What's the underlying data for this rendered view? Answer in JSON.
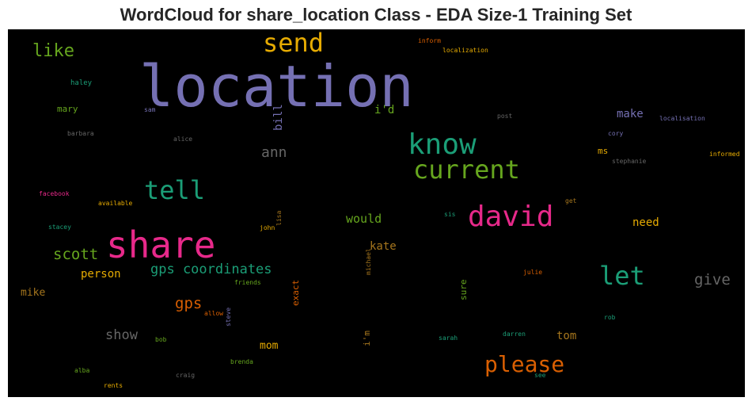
{
  "title": "WordCloud for share_location Class - EDA Size-1 Training Set",
  "chart_data": {
    "type": "wordcloud",
    "title": "WordCloud for share_location Class - EDA Size-1 Training Set",
    "background": "#000000",
    "words": [
      {
        "text": "location",
        "color": "#7570b3"
      },
      {
        "text": "share",
        "color": "#e7298a"
      },
      {
        "text": "send",
        "color": "#e6ab02"
      },
      {
        "text": "know",
        "color": "#1b9e77"
      },
      {
        "text": "current",
        "color": "#66a61e"
      },
      {
        "text": "david",
        "color": "#e7298a"
      },
      {
        "text": "tell",
        "color": "#1b9e77"
      },
      {
        "text": "let",
        "color": "#1b9e77"
      },
      {
        "text": "please",
        "color": "#d95f02"
      },
      {
        "text": "gps coordinates",
        "color": "#1b9e77"
      },
      {
        "text": "like",
        "color": "#66a61e"
      },
      {
        "text": "scott",
        "color": "#66a61e"
      },
      {
        "text": "give",
        "color": "#666666"
      },
      {
        "text": "gps",
        "color": "#d95f02"
      },
      {
        "text": "ann",
        "color": "#666666"
      },
      {
        "text": "show",
        "color": "#666666"
      },
      {
        "text": "would",
        "color": "#66a61e"
      },
      {
        "text": "make",
        "color": "#7570b3"
      },
      {
        "text": "need",
        "color": "#e6ab02"
      },
      {
        "text": "kate",
        "color": "#a6761d"
      },
      {
        "text": "person",
        "color": "#e6ab02"
      },
      {
        "text": "bill",
        "color": "#7570b3"
      },
      {
        "text": "i'd",
        "color": "#66a61e"
      },
      {
        "text": "mike",
        "color": "#a6761d"
      },
      {
        "text": "tom",
        "color": "#a6761d"
      },
      {
        "text": "mom",
        "color": "#e6ab02"
      },
      {
        "text": "ms",
        "color": "#e6ab02"
      },
      {
        "text": "mary",
        "color": "#66a61e"
      },
      {
        "text": "i'm",
        "color": "#a6761d"
      },
      {
        "text": "exact",
        "color": "#d95f02"
      },
      {
        "text": "sure",
        "color": "#66a61e"
      },
      {
        "text": "haley",
        "color": "#1b9e77"
      },
      {
        "text": "sam",
        "color": "#7570b3"
      },
      {
        "text": "barbara",
        "color": "#666666"
      },
      {
        "text": "alice",
        "color": "#666666"
      },
      {
        "text": "inform",
        "color": "#d95f02"
      },
      {
        "text": "localization",
        "color": "#e6ab02"
      },
      {
        "text": "post",
        "color": "#666666"
      },
      {
        "text": "localisation",
        "color": "#7570b3"
      },
      {
        "text": "cory",
        "color": "#7570b3"
      },
      {
        "text": "informed",
        "color": "#e6ab02"
      },
      {
        "text": "stephanie",
        "color": "#666666"
      },
      {
        "text": "facebook",
        "color": "#e7298a"
      },
      {
        "text": "available",
        "color": "#e6ab02"
      },
      {
        "text": "get",
        "color": "#a6761d"
      },
      {
        "text": "sis",
        "color": "#1b9e77"
      },
      {
        "text": "stacey",
        "color": "#1b9e77"
      },
      {
        "text": "john",
        "color": "#e6ab02"
      },
      {
        "text": "lisa",
        "color": "#a6761d"
      },
      {
        "text": "julie",
        "color": "#d95f02"
      },
      {
        "text": "friends",
        "color": "#66a61e"
      },
      {
        "text": "michael",
        "color": "#a6761d"
      },
      {
        "text": "allow",
        "color": "#d95f02"
      },
      {
        "text": "steve",
        "color": "#7570b3"
      },
      {
        "text": "rob",
        "color": "#1b9e77"
      },
      {
        "text": "bob",
        "color": "#66a61e"
      },
      {
        "text": "sarah",
        "color": "#1b9e77"
      },
      {
        "text": "darren",
        "color": "#1b9e77"
      },
      {
        "text": "brenda",
        "color": "#66a61e"
      },
      {
        "text": "craig",
        "color": "#666666"
      },
      {
        "text": "alba",
        "color": "#66a61e"
      },
      {
        "text": "rents",
        "color": "#e6ab02"
      },
      {
        "text": "see",
        "color": "#1b9e77"
      }
    ]
  }
}
